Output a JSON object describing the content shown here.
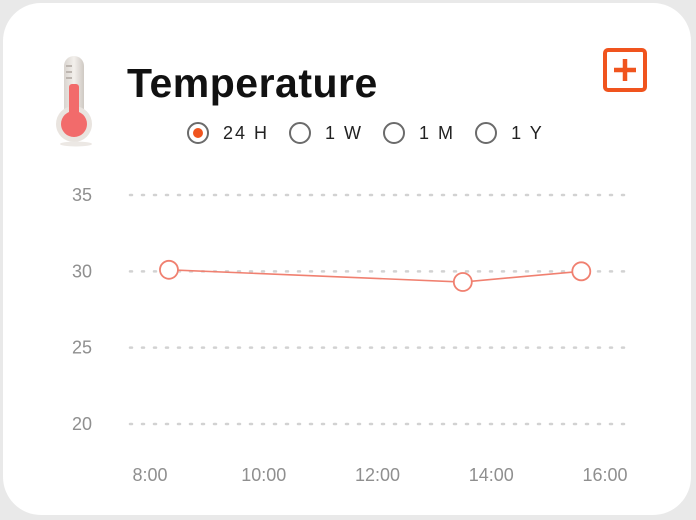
{
  "card": {
    "title": "Temperature",
    "add_icon": "plus-square-icon",
    "thermometer_icon": "thermometer-icon",
    "accent_color": "#f0541e",
    "line_color": "#f08070"
  },
  "range_selector": {
    "options": [
      {
        "label": "24 H",
        "selected": true
      },
      {
        "label": "1 W",
        "selected": false
      },
      {
        "label": "1 M",
        "selected": false
      },
      {
        "label": "1 Y",
        "selected": false
      }
    ]
  },
  "chart_data": {
    "type": "line",
    "title": "",
    "xlabel": "",
    "ylabel": "",
    "x_ticks": [
      "8:00",
      "10:00",
      "12:00",
      "14:00",
      "16:00"
    ],
    "y_ticks": [
      "35",
      "30",
      "25",
      "20"
    ],
    "ylim": [
      20,
      35
    ],
    "xlim": [
      "8:00",
      "16:00"
    ],
    "grid": true,
    "series": [
      {
        "points": [
          {
            "x": "8:20",
            "y": 30.1
          },
          {
            "x": "13:30",
            "y": 29.3
          },
          {
            "x": "15:35",
            "y": 30.0
          }
        ]
      }
    ]
  }
}
